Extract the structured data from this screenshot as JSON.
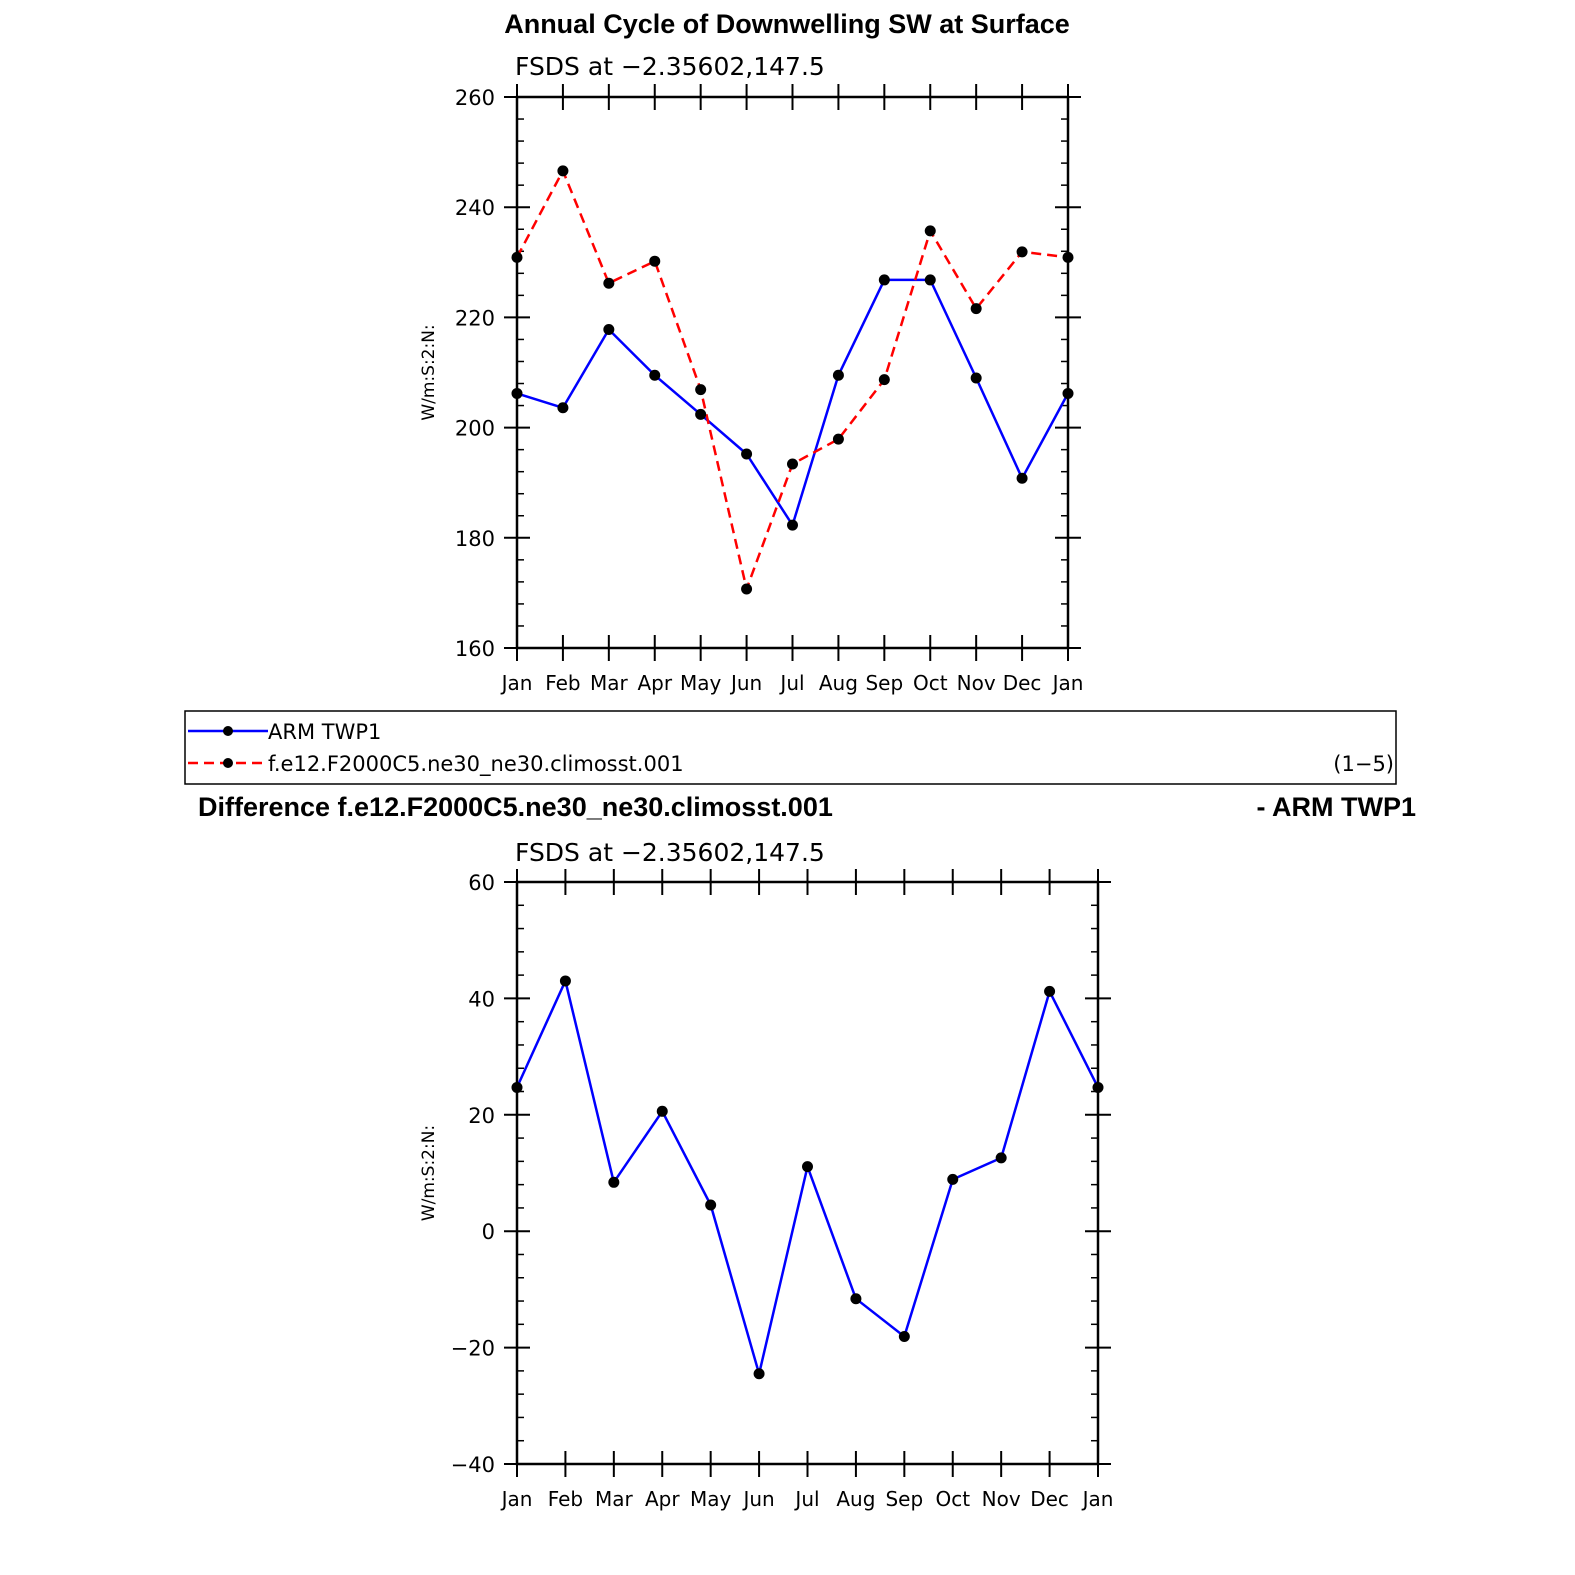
{
  "chart_data": [
    {
      "type": "line",
      "title": "Annual Cycle of Downwelling SW at Surface",
      "subtitle": "FSDS at −2.35602,147.5",
      "ylabel": "W/m:S:2:N:",
      "xlabel": "",
      "categories": [
        "Jan",
        "Feb",
        "Mar",
        "Apr",
        "May",
        "Jun",
        "Jul",
        "Aug",
        "Sep",
        "Oct",
        "Nov",
        "Dec",
        "Jan"
      ],
      "ylim": [
        160,
        260
      ],
      "yticks": [
        160,
        180,
        200,
        220,
        240,
        260
      ],
      "ytick_labels": [
        "160",
        "180",
        "200",
        "220",
        "240",
        "260"
      ],
      "series": [
        {
          "name": "ARM TWP1",
          "color": "#0000ff",
          "style": "solid",
          "values": [
            206.2,
            203.6,
            217.8,
            209.5,
            202.4,
            195.2,
            182.3,
            209.5,
            226.8,
            226.8,
            209.0,
            190.8,
            206.2
          ]
        },
        {
          "name": "f.e12.F2000C5.ne30_ne30.climosst.001",
          "color": "#ff0000",
          "style": "dashed",
          "values": [
            230.9,
            246.6,
            226.2,
            230.2,
            206.9,
            170.7,
            193.4,
            197.9,
            208.7,
            235.7,
            221.6,
            231.9,
            230.9
          ]
        }
      ]
    },
    {
      "type": "line",
      "title": "Difference f.e12.F2000C5.ne30_ne30.climosst.001",
      "title_right": "- ARM TWP1",
      "subtitle": "FSDS at −2.35602,147.5",
      "ylabel": "W/m:S:2:N:",
      "xlabel": "",
      "categories": [
        "Jan",
        "Feb",
        "Mar",
        "Apr",
        "May",
        "Jun",
        "Jul",
        "Aug",
        "Sep",
        "Oct",
        "Nov",
        "Dec",
        "Jan"
      ],
      "ylim": [
        -40,
        60
      ],
      "yticks": [
        -40,
        -20,
        0,
        20,
        40,
        60
      ],
      "ytick_labels": [
        "−40",
        "−20",
        "0",
        "20",
        "40",
        "60"
      ],
      "series": [
        {
          "color": "#0000ff",
          "style": "solid",
          "values": [
            24.7,
            43.0,
            8.4,
            20.6,
            4.5,
            -24.5,
            11.1,
            -11.6,
            -18.1,
            8.9,
            12.6,
            41.2,
            24.7
          ]
        }
      ]
    }
  ],
  "legend": {
    "items": [
      {
        "label": "ARM TWP1",
        "color": "#0000ff",
        "style": "solid"
      },
      {
        "label": "f.e12.F2000C5.ne30_ne30.climosst.001",
        "color": "#ff0000",
        "style": "dashed"
      }
    ],
    "note": "(1−5)"
  }
}
